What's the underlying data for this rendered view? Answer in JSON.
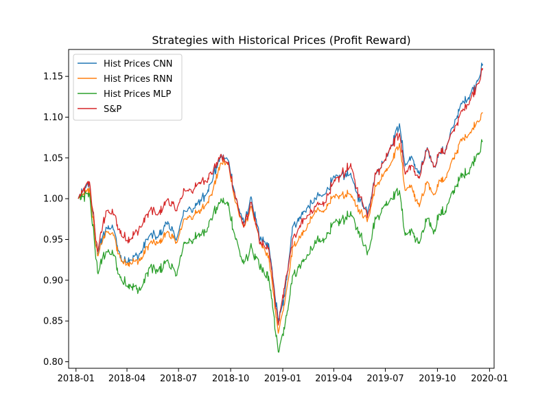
{
  "chart_data": {
    "type": "line",
    "title": "Strategies with Historical Prices (Profit Reward)",
    "xlabel": "",
    "ylabel": "",
    "x_range": [
      "2017-12-19",
      "2020-01-09"
    ],
    "ylim": [
      0.792,
      1.183
    ],
    "x_ticks": [
      {
        "date": "2018-01-01",
        "label": "2018-01"
      },
      {
        "date": "2018-04-01",
        "label": "2018-04"
      },
      {
        "date": "2018-07-01",
        "label": "2018-07"
      },
      {
        "date": "2018-10-01",
        "label": "2018-10"
      },
      {
        "date": "2019-01-01",
        "label": "2019-01"
      },
      {
        "date": "2019-04-01",
        "label": "2019-04"
      },
      {
        "date": "2019-07-01",
        "label": "2019-07"
      },
      {
        "date": "2019-10-01",
        "label": "2019-10"
      },
      {
        "date": "2020-01-01",
        "label": "2020-01"
      }
    ],
    "y_ticks": [
      {
        "value": 0.8,
        "label": "0.80"
      },
      {
        "value": 0.85,
        "label": "0.85"
      },
      {
        "value": 0.9,
        "label": "0.90"
      },
      {
        "value": 0.95,
        "label": "0.95"
      },
      {
        "value": 1.0,
        "label": "1.00"
      },
      {
        "value": 1.05,
        "label": "1.05"
      },
      {
        "value": 1.1,
        "label": "1.10"
      },
      {
        "value": 1.15,
        "label": "1.15"
      }
    ],
    "grid": false,
    "legend_position": "top-left",
    "x": [
      "2018-01-05",
      "2018-01-25",
      "2018-02-08",
      "2018-02-23",
      "2018-03-08",
      "2018-03-22",
      "2018-04-06",
      "2018-04-25",
      "2018-05-11",
      "2018-05-25",
      "2018-06-12",
      "2018-06-26",
      "2018-07-12",
      "2018-07-27",
      "2018-08-10",
      "2018-08-28",
      "2018-09-12",
      "2018-09-20",
      "2018-09-28",
      "2018-10-10",
      "2018-10-24",
      "2018-11-07",
      "2018-11-21",
      "2018-12-07",
      "2018-12-24",
      "2019-01-04",
      "2019-01-18",
      "2019-02-08",
      "2019-02-28",
      "2019-03-15",
      "2019-03-28",
      "2019-04-15",
      "2019-04-30",
      "2019-05-15",
      "2019-05-31",
      "2019-06-14",
      "2019-06-28",
      "2019-07-12",
      "2019-07-26",
      "2019-08-05",
      "2019-08-15",
      "2019-08-30",
      "2019-09-12",
      "2019-09-25",
      "2019-10-03",
      "2019-10-15",
      "2019-10-30",
      "2019-11-15",
      "2019-11-27",
      "2019-12-10",
      "2019-12-20"
    ],
    "series": [
      {
        "name": "Hist Prices CNN",
        "color": "#1f77b4",
        "values": [
          1.0,
          1.018,
          0.932,
          0.965,
          0.962,
          0.925,
          0.925,
          0.933,
          0.955,
          0.952,
          0.972,
          0.95,
          0.985,
          0.988,
          0.997,
          1.02,
          1.05,
          1.05,
          1.045,
          1.0,
          0.97,
          1.0,
          0.95,
          0.945,
          0.85,
          0.88,
          0.965,
          0.985,
          1.0,
          1.005,
          1.02,
          1.03,
          1.03,
          1.0,
          0.985,
          1.03,
          1.045,
          1.065,
          1.092,
          1.04,
          1.05,
          1.03,
          1.06,
          1.04,
          1.055,
          1.06,
          1.09,
          1.12,
          1.125,
          1.145,
          1.165
        ]
      },
      {
        "name": "Hist Prices RNN",
        "color": "#ff7f0e",
        "values": [
          1.0,
          1.01,
          0.93,
          0.96,
          0.955,
          0.923,
          0.922,
          0.925,
          0.945,
          0.945,
          0.96,
          0.945,
          0.975,
          0.978,
          0.985,
          1.005,
          1.04,
          1.045,
          1.04,
          0.995,
          0.965,
          0.99,
          0.945,
          0.93,
          0.835,
          0.87,
          0.94,
          0.96,
          0.985,
          0.985,
          1.0,
          1.005,
          1.005,
          0.985,
          0.975,
          1.015,
          1.03,
          1.045,
          1.068,
          1.01,
          1.015,
          0.99,
          1.02,
          1.005,
          1.02,
          1.025,
          1.05,
          1.075,
          1.08,
          1.095,
          1.105
        ]
      },
      {
        "name": "Hist Prices MLP",
        "color": "#2ca02c",
        "values": [
          1.0,
          1.005,
          0.91,
          0.935,
          0.93,
          0.9,
          0.895,
          0.888,
          0.915,
          0.91,
          0.925,
          0.905,
          0.945,
          0.95,
          0.955,
          0.975,
          0.995,
          0.995,
          0.99,
          0.95,
          0.92,
          0.94,
          0.915,
          0.905,
          0.812,
          0.84,
          0.905,
          0.925,
          0.945,
          0.95,
          0.965,
          0.975,
          0.98,
          0.96,
          0.935,
          0.975,
          0.99,
          1.0,
          1.01,
          0.955,
          0.96,
          0.945,
          0.975,
          0.96,
          0.98,
          0.985,
          1.01,
          1.03,
          1.035,
          1.055,
          1.07
        ]
      },
      {
        "name": "S&P",
        "color": "#d62728",
        "values": [
          1.0,
          1.02,
          0.935,
          0.985,
          0.98,
          0.955,
          0.95,
          0.965,
          0.985,
          0.98,
          1.0,
          0.985,
          1.01,
          1.01,
          1.02,
          1.03,
          1.05,
          1.048,
          1.04,
          1.0,
          0.965,
          0.995,
          0.945,
          0.94,
          0.845,
          0.89,
          0.95,
          0.975,
          0.99,
          0.995,
          1.015,
          1.03,
          1.04,
          1.005,
          0.98,
          1.03,
          1.045,
          1.065,
          1.08,
          1.03,
          1.04,
          1.025,
          1.06,
          1.04,
          1.055,
          1.06,
          1.085,
          1.11,
          1.12,
          1.14,
          1.16
        ]
      }
    ]
  }
}
